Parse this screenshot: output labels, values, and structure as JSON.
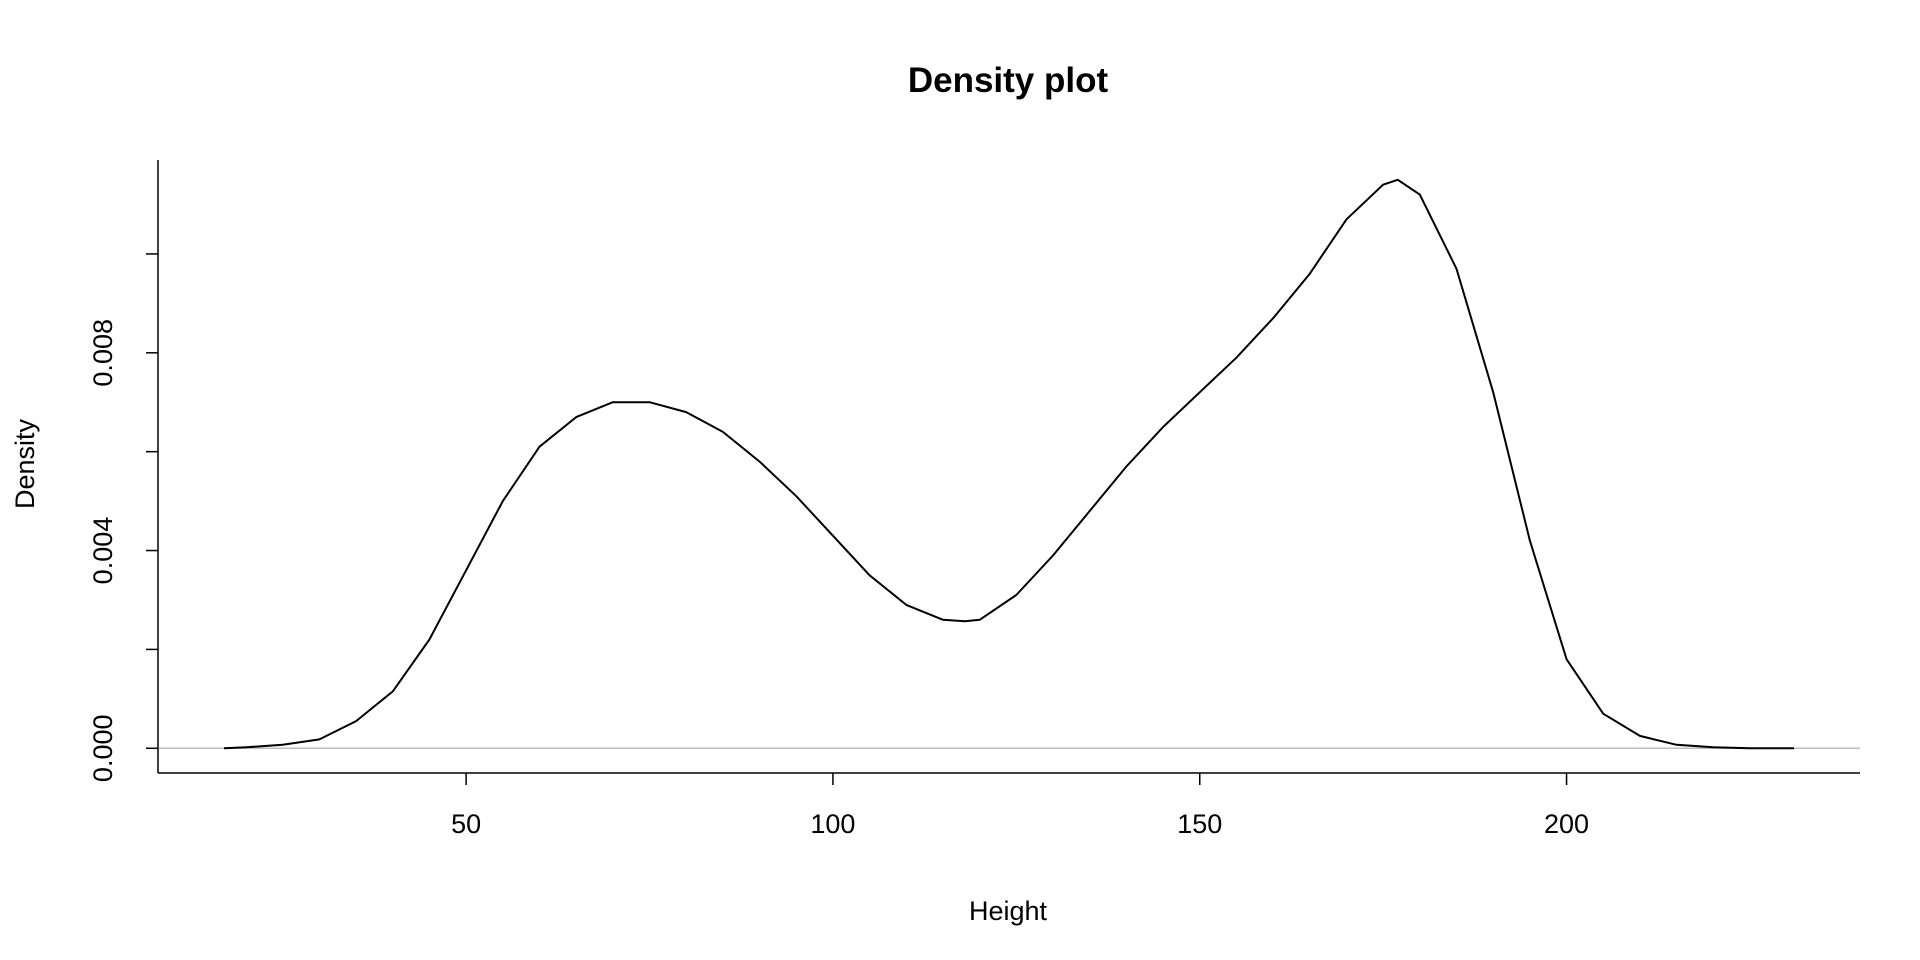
{
  "chart_data": {
    "type": "line",
    "title": "Density plot",
    "xlabel": "Height",
    "ylabel": "Density",
    "xlim": [
      8,
      240
    ],
    "ylim": [
      -0.0005,
      0.0119
    ],
    "x_ticks": [
      50,
      100,
      150,
      200
    ],
    "x_tick_labels": [
      "50",
      "100",
      "150",
      "200"
    ],
    "y_ticks": [
      0.0,
      0.002,
      0.004,
      0.006,
      0.008,
      0.01
    ],
    "y_tick_labels": [
      "0.000",
      "",
      "0.004",
      "",
      "0.008",
      ""
    ],
    "grid": false,
    "zero_line": true,
    "series": [
      {
        "x": [
          17,
          20,
          25,
          30,
          35,
          40,
          45,
          50,
          55,
          60,
          65,
          70,
          72,
          75,
          80,
          85,
          90,
          95,
          100,
          105,
          110,
          115,
          118,
          120,
          125,
          130,
          135,
          140,
          145,
          150,
          155,
          160,
          165,
          170,
          175,
          177,
          180,
          185,
          190,
          195,
          200,
          205,
          210,
          215,
          220,
          225,
          231
        ],
        "y": [
          0.0,
          2e-05,
          7e-05,
          0.00018,
          0.00055,
          0.00115,
          0.0022,
          0.0036,
          0.005,
          0.0061,
          0.0067,
          0.007,
          0.007,
          0.007,
          0.0068,
          0.0064,
          0.0058,
          0.0051,
          0.0043,
          0.0035,
          0.0029,
          0.0026,
          0.00257,
          0.0026,
          0.0031,
          0.0039,
          0.0048,
          0.0057,
          0.0065,
          0.0072,
          0.0079,
          0.0087,
          0.0096,
          0.0107,
          0.0114,
          0.0115,
          0.0112,
          0.0097,
          0.0072,
          0.0042,
          0.0018,
          0.0007,
          0.00025,
          7e-05,
          2e-05,
          0.0,
          0.0
        ]
      }
    ]
  }
}
